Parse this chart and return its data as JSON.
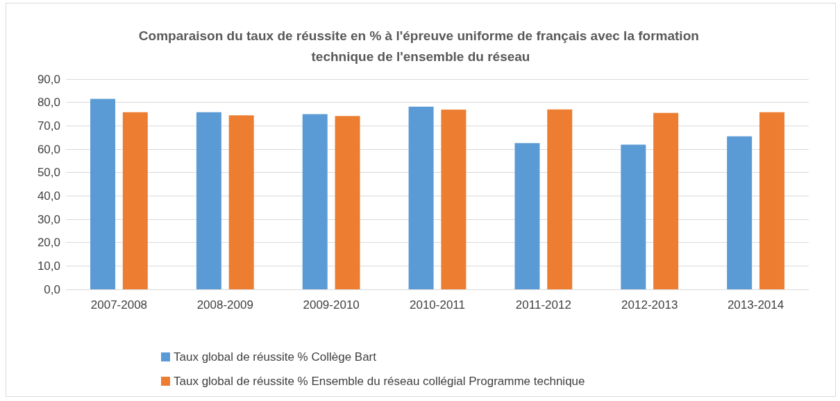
{
  "chart_data": {
    "type": "bar",
    "title": "Comparaison du taux de réussite en % à l'épreuve uniforme de français avec la formation technique de l'ensemble du réseau",
    "categories": [
      "2007-2008",
      "2008-2009",
      "2009-2010",
      "2010-2011",
      "2011-2012",
      "2012-2013",
      "2013-2014"
    ],
    "series": [
      {
        "name": "Taux global de réussite % Collège Bart",
        "color": "#5b9bd5",
        "values": [
          81.5,
          75.8,
          75.0,
          78.2,
          62.6,
          61.9,
          65.5
        ]
      },
      {
        "name": "Taux global de réussite % Ensemble du réseau collégial Programme technique",
        "color": "#ed7d31",
        "values": [
          75.8,
          74.5,
          74.2,
          76.9,
          77.0,
          75.5,
          75.8
        ]
      }
    ],
    "ylim": [
      0,
      90
    ],
    "yticks": [
      {
        "value": 0,
        "label": "0,0"
      },
      {
        "value": 10,
        "label": "10,0"
      },
      {
        "value": 20,
        "label": "20,0"
      },
      {
        "value": 30,
        "label": "30,0"
      },
      {
        "value": 40,
        "label": "40,0"
      },
      {
        "value": 50,
        "label": "50,0"
      },
      {
        "value": 60,
        "label": "60,0"
      },
      {
        "value": 70,
        "label": "70,0"
      },
      {
        "value": 80,
        "label": "80,0"
      },
      {
        "value": 90,
        "label": "90,0"
      }
    ],
    "grid": "y",
    "legend": "bottom"
  }
}
